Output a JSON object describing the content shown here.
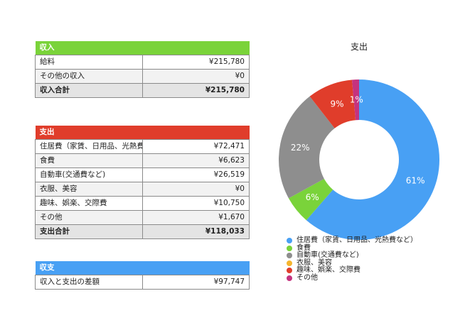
{
  "income": {
    "header": "収入",
    "rows": [
      {
        "label": "給料",
        "amount": "¥215,780"
      },
      {
        "label": "その他の収入",
        "amount": "¥0"
      }
    ],
    "total": {
      "label": "収入合計",
      "amount": "¥215,780"
    }
  },
  "expense": {
    "header": "支出",
    "rows": [
      {
        "label": "住居費（家賃、日用品、光熱費など）",
        "amount": "¥72,471"
      },
      {
        "label": "食費",
        "amount": "¥6,623"
      },
      {
        "label": "自動車(交通費など)",
        "amount": "¥26,519"
      },
      {
        "label": "衣服、美容",
        "amount": "¥0"
      },
      {
        "label": "趣味、娯楽、交際費",
        "amount": "¥10,750"
      },
      {
        "label": "その他",
        "amount": "¥1,670"
      }
    ],
    "total": {
      "label": "支出合計",
      "amount": "¥118,033"
    }
  },
  "balance": {
    "header": "収支",
    "rows": [
      {
        "label": "収入と支出の差額",
        "amount": "¥97,747"
      }
    ]
  },
  "colors": {
    "income_header": "#7ad33a",
    "expense_header": "#e03d2b",
    "balance_header": "#48a0f4"
  },
  "chart_data": {
    "type": "pie",
    "title": "支出",
    "donut": true,
    "legend_position": "bottom",
    "categories": [
      "住居費（家賃、日用品、光熱費など）",
      "食費",
      "自動車(交通費など)",
      "衣服、美容",
      "趣味、娯楽、交際費",
      "その他"
    ],
    "values": [
      72471,
      6623,
      26519,
      0,
      10750,
      1670
    ],
    "labels": [
      "61%",
      "6%",
      "22%",
      "",
      "9%",
      "1%"
    ],
    "colors": [
      "#48a0f4",
      "#7ad33a",
      "#8e8e8e",
      "#f5b52e",
      "#e03d2b",
      "#c5337f"
    ]
  }
}
